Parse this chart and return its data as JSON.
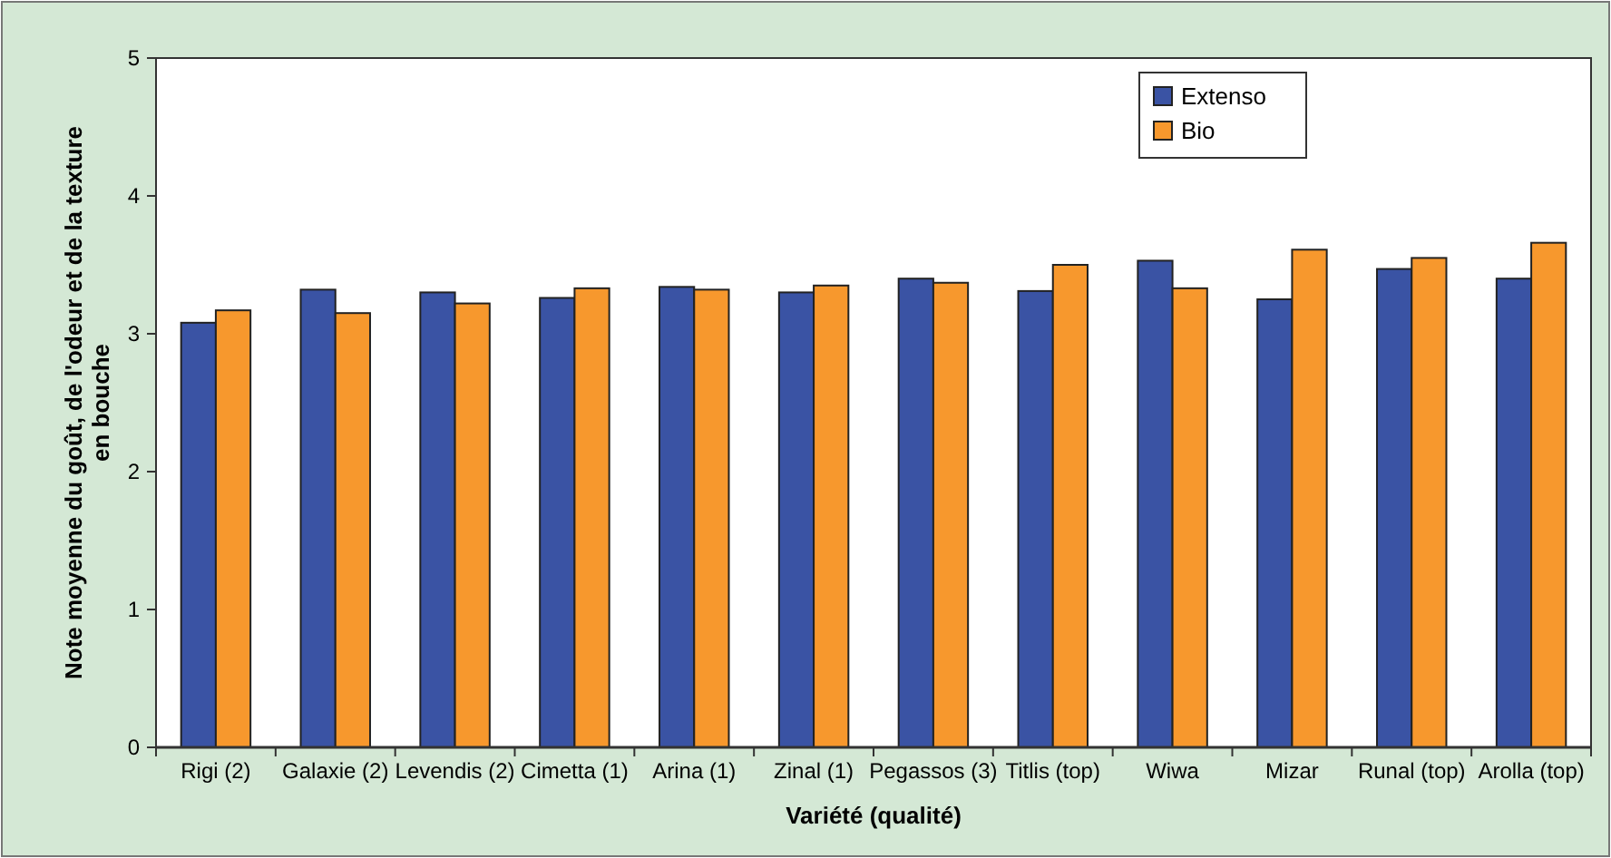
{
  "chart_data": {
    "type": "bar",
    "xlabel": "Variété (qualité)",
    "ylabel": "Note moyenne du goût, de l'odeur et de la texture\nen bouche",
    "categories": [
      "Rigi (2)",
      "Galaxie (2)",
      "Levendis (2)",
      "Cimetta (1)",
      "Arina (1)",
      "Zinal (1)",
      "Pegassos (3)",
      "Titlis (top)",
      "Wiwa",
      "Mizar",
      "Runal (top)",
      "Arolla (top)"
    ],
    "series": [
      {
        "name": "Extenso",
        "color": "#3a53a4",
        "values": [
          3.08,
          3.32,
          3.3,
          3.26,
          3.34,
          3.3,
          3.4,
          3.31,
          3.53,
          3.25,
          3.47,
          3.4
        ]
      },
      {
        "name": "Bio",
        "color": "#f7982d",
        "values": [
          3.17,
          3.15,
          3.22,
          3.33,
          3.32,
          3.35,
          3.37,
          3.5,
          3.33,
          3.61,
          3.55,
          3.66
        ]
      }
    ],
    "ylim": [
      0,
      5
    ],
    "yticks": [
      0,
      1,
      2,
      3,
      4,
      5
    ],
    "grid": false,
    "legend": "top right"
  }
}
